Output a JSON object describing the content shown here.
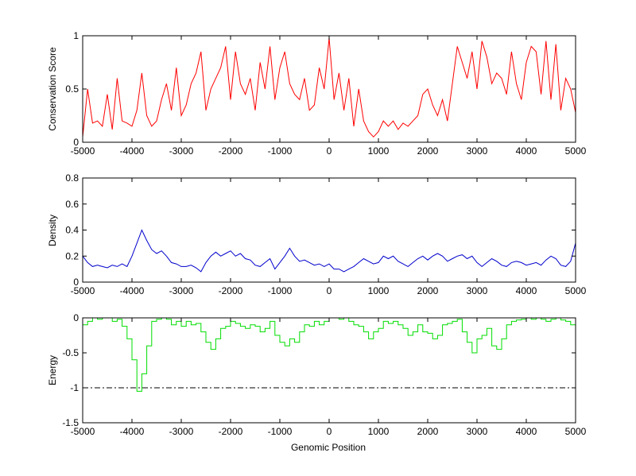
{
  "chart_data": [
    {
      "type": "line",
      "ylabel": "Conservation Score",
      "xlim": [
        -5000,
        5000
      ],
      "ylim": [
        0,
        1
      ],
      "xticks": [
        -5000,
        -4000,
        -3000,
        -2000,
        -1000,
        0,
        1000,
        2000,
        3000,
        4000,
        5000
      ],
      "yticks": [
        0,
        0.5,
        1
      ],
      "color": "#ff0000",
      "series": [
        {
          "x": [
            -5000,
            -4900,
            -4800,
            -4700,
            -4600,
            -4500,
            -4400,
            -4300,
            -4200,
            -4100,
            -4000,
            -3900,
            -3800,
            -3700,
            -3600,
            -3500,
            -3400,
            -3300,
            -3200,
            -3100,
            -3000,
            -2900,
            -2800,
            -2700,
            -2600,
            -2500,
            -2400,
            -2300,
            -2200,
            -2100,
            -2000,
            -1900,
            -1800,
            -1700,
            -1600,
            -1500,
            -1400,
            -1300,
            -1200,
            -1100,
            -1000,
            -900,
            -800,
            -700,
            -600,
            -500,
            -400,
            -300,
            -200,
            -100,
            0,
            100,
            200,
            300,
            400,
            500,
            600,
            700,
            800,
            900,
            1000,
            1100,
            1200,
            1300,
            1400,
            1500,
            1600,
            1700,
            1800,
            1900,
            2000,
            2100,
            2200,
            2300,
            2400,
            2500,
            2600,
            2700,
            2800,
            2900,
            3000,
            3100,
            3200,
            3300,
            3400,
            3500,
            3600,
            3700,
            3800,
            3900,
            4000,
            4100,
            4200,
            4300,
            4400,
            4500,
            4600,
            4700,
            4800,
            4900,
            5000
          ],
          "y": [
            0.05,
            0.5,
            0.18,
            0.2,
            0.15,
            0.45,
            0.12,
            0.6,
            0.2,
            0.18,
            0.15,
            0.3,
            0.65,
            0.25,
            0.15,
            0.2,
            0.4,
            0.55,
            0.3,
            0.7,
            0.25,
            0.35,
            0.55,
            0.65,
            0.85,
            0.3,
            0.5,
            0.6,
            0.7,
            0.9,
            0.4,
            0.85,
            0.55,
            0.45,
            0.6,
            0.3,
            0.75,
            0.5,
            0.9,
            0.4,
            0.7,
            0.85,
            0.55,
            0.45,
            0.4,
            0.6,
            0.3,
            0.35,
            0.7,
            0.5,
            0.98,
            0.4,
            0.65,
            0.3,
            0.6,
            0.15,
            0.5,
            0.2,
            0.1,
            0.05,
            0.1,
            0.2,
            0.15,
            0.2,
            0.12,
            0.18,
            0.15,
            0.2,
            0.25,
            0.45,
            0.5,
            0.35,
            0.25,
            0.4,
            0.2,
            0.55,
            0.9,
            0.75,
            0.6,
            0.85,
            0.5,
            0.95,
            0.8,
            0.55,
            0.65,
            0.6,
            0.45,
            0.85,
            0.55,
            0.4,
            0.75,
            0.9,
            0.85,
            0.45,
            0.95,
            0.4,
            0.92,
            0.3,
            0.6,
            0.5,
            0.28
          ]
        }
      ]
    },
    {
      "type": "line",
      "ylabel": "Density",
      "xlim": [
        -5000,
        5000
      ],
      "ylim": [
        0,
        0.8
      ],
      "xticks": [
        -5000,
        -4000,
        -3000,
        -2000,
        -1000,
        0,
        1000,
        2000,
        3000,
        4000,
        5000
      ],
      "yticks": [
        0,
        0.2,
        0.4,
        0.6,
        0.8
      ],
      "color": "#0000cc",
      "series": [
        {
          "x": [
            -5000,
            -4900,
            -4800,
            -4700,
            -4600,
            -4500,
            -4400,
            -4300,
            -4200,
            -4100,
            -4000,
            -3900,
            -3800,
            -3700,
            -3600,
            -3500,
            -3400,
            -3300,
            -3200,
            -3100,
            -3000,
            -2900,
            -2800,
            -2700,
            -2600,
            -2500,
            -2400,
            -2300,
            -2200,
            -2100,
            -2000,
            -1900,
            -1800,
            -1700,
            -1600,
            -1500,
            -1400,
            -1300,
            -1200,
            -1100,
            -1000,
            -900,
            -800,
            -700,
            -600,
            -500,
            -400,
            -300,
            -200,
            -100,
            0,
            100,
            200,
            300,
            400,
            500,
            600,
            700,
            800,
            900,
            1000,
            1100,
            1200,
            1300,
            1400,
            1500,
            1600,
            1700,
            1800,
            1900,
            2000,
            2100,
            2200,
            2300,
            2400,
            2500,
            2600,
            2700,
            2800,
            2900,
            3000,
            3100,
            3200,
            3300,
            3400,
            3500,
            3600,
            3700,
            3800,
            3900,
            4000,
            4100,
            4200,
            4300,
            4400,
            4500,
            4600,
            4700,
            4800,
            4900,
            5000
          ],
          "y": [
            0.2,
            0.15,
            0.12,
            0.13,
            0.12,
            0.11,
            0.13,
            0.12,
            0.14,
            0.12,
            0.2,
            0.3,
            0.4,
            0.32,
            0.25,
            0.22,
            0.24,
            0.2,
            0.15,
            0.14,
            0.12,
            0.12,
            0.13,
            0.11,
            0.08,
            0.15,
            0.2,
            0.23,
            0.2,
            0.22,
            0.24,
            0.2,
            0.22,
            0.18,
            0.17,
            0.13,
            0.12,
            0.15,
            0.18,
            0.1,
            0.15,
            0.2,
            0.26,
            0.2,
            0.16,
            0.17,
            0.15,
            0.13,
            0.14,
            0.12,
            0.14,
            0.1,
            0.1,
            0.08,
            0.1,
            0.12,
            0.15,
            0.18,
            0.16,
            0.14,
            0.15,
            0.2,
            0.18,
            0.2,
            0.16,
            0.14,
            0.12,
            0.15,
            0.18,
            0.2,
            0.17,
            0.2,
            0.22,
            0.2,
            0.16,
            0.18,
            0.2,
            0.21,
            0.18,
            0.2,
            0.15,
            0.12,
            0.15,
            0.18,
            0.16,
            0.13,
            0.12,
            0.15,
            0.16,
            0.15,
            0.13,
            0.14,
            0.15,
            0.13,
            0.17,
            0.2,
            0.18,
            0.13,
            0.12,
            0.16,
            0.3
          ]
        }
      ]
    },
    {
      "type": "line",
      "step": true,
      "ylabel": "Energy",
      "xlabel": "Genomic Position",
      "xlim": [
        -5000,
        5000
      ],
      "ylim": [
        -1.5,
        0
      ],
      "xticks": [
        -5000,
        -4000,
        -3000,
        -2000,
        -1000,
        0,
        1000,
        2000,
        3000,
        4000,
        5000
      ],
      "yticks": [
        -1.5,
        -1,
        -0.5,
        0
      ],
      "color": "#00dd00",
      "reference_line": {
        "y": -1,
        "style": "dash-dot",
        "color": "#000000"
      },
      "series": [
        {
          "x": [
            -5000,
            -4900,
            -4800,
            -4700,
            -4600,
            -4500,
            -4400,
            -4300,
            -4200,
            -4100,
            -4000,
            -3900,
            -3800,
            -3700,
            -3600,
            -3500,
            -3400,
            -3300,
            -3200,
            -3100,
            -3000,
            -2900,
            -2800,
            -2700,
            -2600,
            -2500,
            -2400,
            -2300,
            -2200,
            -2100,
            -2000,
            -1900,
            -1800,
            -1700,
            -1600,
            -1500,
            -1400,
            -1300,
            -1200,
            -1100,
            -1000,
            -900,
            -800,
            -700,
            -600,
            -500,
            -400,
            -300,
            -200,
            -100,
            0,
            100,
            200,
            300,
            400,
            500,
            600,
            700,
            800,
            900,
            1000,
            1100,
            1200,
            1300,
            1400,
            1500,
            1600,
            1700,
            1800,
            1900,
            2000,
            2100,
            2200,
            2300,
            2400,
            2500,
            2600,
            2700,
            2800,
            2900,
            3000,
            3100,
            3200,
            3300,
            3400,
            3500,
            3600,
            3700,
            3800,
            3900,
            4000,
            4100,
            4200,
            4300,
            4400,
            4500,
            4600,
            4700,
            4800,
            4900,
            5000
          ],
          "y": [
            -0.1,
            -0.05,
            0,
            -0.02,
            0,
            0,
            -0.05,
            -0.02,
            -0.12,
            -0.3,
            -0.6,
            -1.05,
            -0.8,
            -0.4,
            -0.05,
            -0.02,
            0,
            -0.02,
            -0.1,
            -0.05,
            -0.12,
            -0.05,
            -0.1,
            -0.08,
            -0.2,
            -0.35,
            -0.45,
            -0.3,
            -0.15,
            -0.12,
            -0.05,
            -0.08,
            -0.12,
            -0.15,
            -0.1,
            -0.12,
            -0.2,
            -0.15,
            -0.05,
            -0.25,
            -0.35,
            -0.4,
            -0.3,
            -0.35,
            -0.2,
            -0.1,
            -0.12,
            -0.05,
            -0.1,
            -0.05,
            0,
            0,
            -0.02,
            0,
            -0.05,
            -0.1,
            -0.12,
            -0.2,
            -0.3,
            -0.2,
            -0.15,
            -0.05,
            -0.08,
            -0.05,
            -0.1,
            -0.15,
            -0.25,
            -0.2,
            -0.1,
            -0.2,
            -0.22,
            -0.3,
            -0.25,
            -0.1,
            -0.08,
            -0.05,
            -0.02,
            -0.2,
            -0.35,
            -0.5,
            -0.3,
            -0.25,
            -0.15,
            -0.4,
            -0.45,
            -0.3,
            -0.1,
            -0.05,
            -0.03,
            -0.02,
            0,
            -0.02,
            0,
            -0.02,
            -0.05,
            -0.02,
            0,
            -0.03,
            -0.05,
            -0.1,
            -0.12
          ]
        }
      ]
    }
  ]
}
